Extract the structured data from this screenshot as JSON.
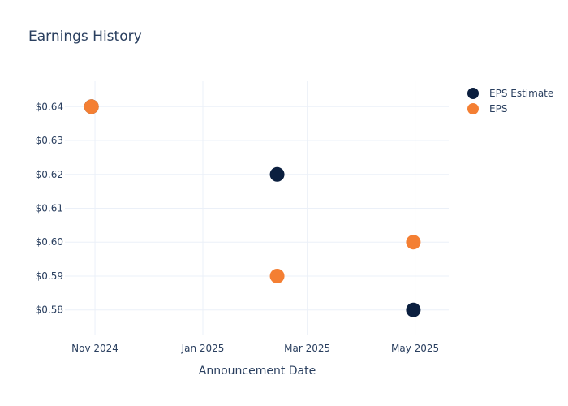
{
  "chart_data": {
    "type": "scatter",
    "title": "Earnings History",
    "xlabel": "Announcement Date",
    "ylabel": "",
    "x_axis": {
      "type": "date",
      "range": [
        "2024-10-15",
        "2025-05-20"
      ],
      "ticks": [
        {
          "date": "2024-11-01",
          "label": "Nov 2024"
        },
        {
          "date": "2025-01-01",
          "label": "Jan 2025"
        },
        {
          "date": "2025-03-01",
          "label": "Mar 2025"
        },
        {
          "date": "2025-05-01",
          "label": "May 2025"
        }
      ]
    },
    "y_axis": {
      "range": [
        0.5725,
        0.6475
      ],
      "ticks": [
        {
          "value": 0.58,
          "label": "$0.58"
        },
        {
          "value": 0.59,
          "label": "$0.59"
        },
        {
          "value": 0.6,
          "label": "$0.60"
        },
        {
          "value": 0.61,
          "label": "$0.61"
        },
        {
          "value": 0.62,
          "label": "$0.62"
        },
        {
          "value": 0.63,
          "label": "$0.63"
        },
        {
          "value": 0.64,
          "label": "$0.64"
        }
      ]
    },
    "grid": true,
    "legend_position": "top-right",
    "series": [
      {
        "name": "EPS Estimate",
        "color": "#0b1f3f",
        "points": [
          {
            "x": "2024-10-30",
            "y": 0.64
          },
          {
            "x": "2025-02-12",
            "y": 0.62
          },
          {
            "x": "2025-04-30",
            "y": 0.58
          }
        ]
      },
      {
        "name": "EPS",
        "color": "#f47f33",
        "points": [
          {
            "x": "2024-10-30",
            "y": 0.64
          },
          {
            "x": "2025-02-12",
            "y": 0.59
          },
          {
            "x": "2025-04-30",
            "y": 0.6
          }
        ]
      }
    ]
  }
}
